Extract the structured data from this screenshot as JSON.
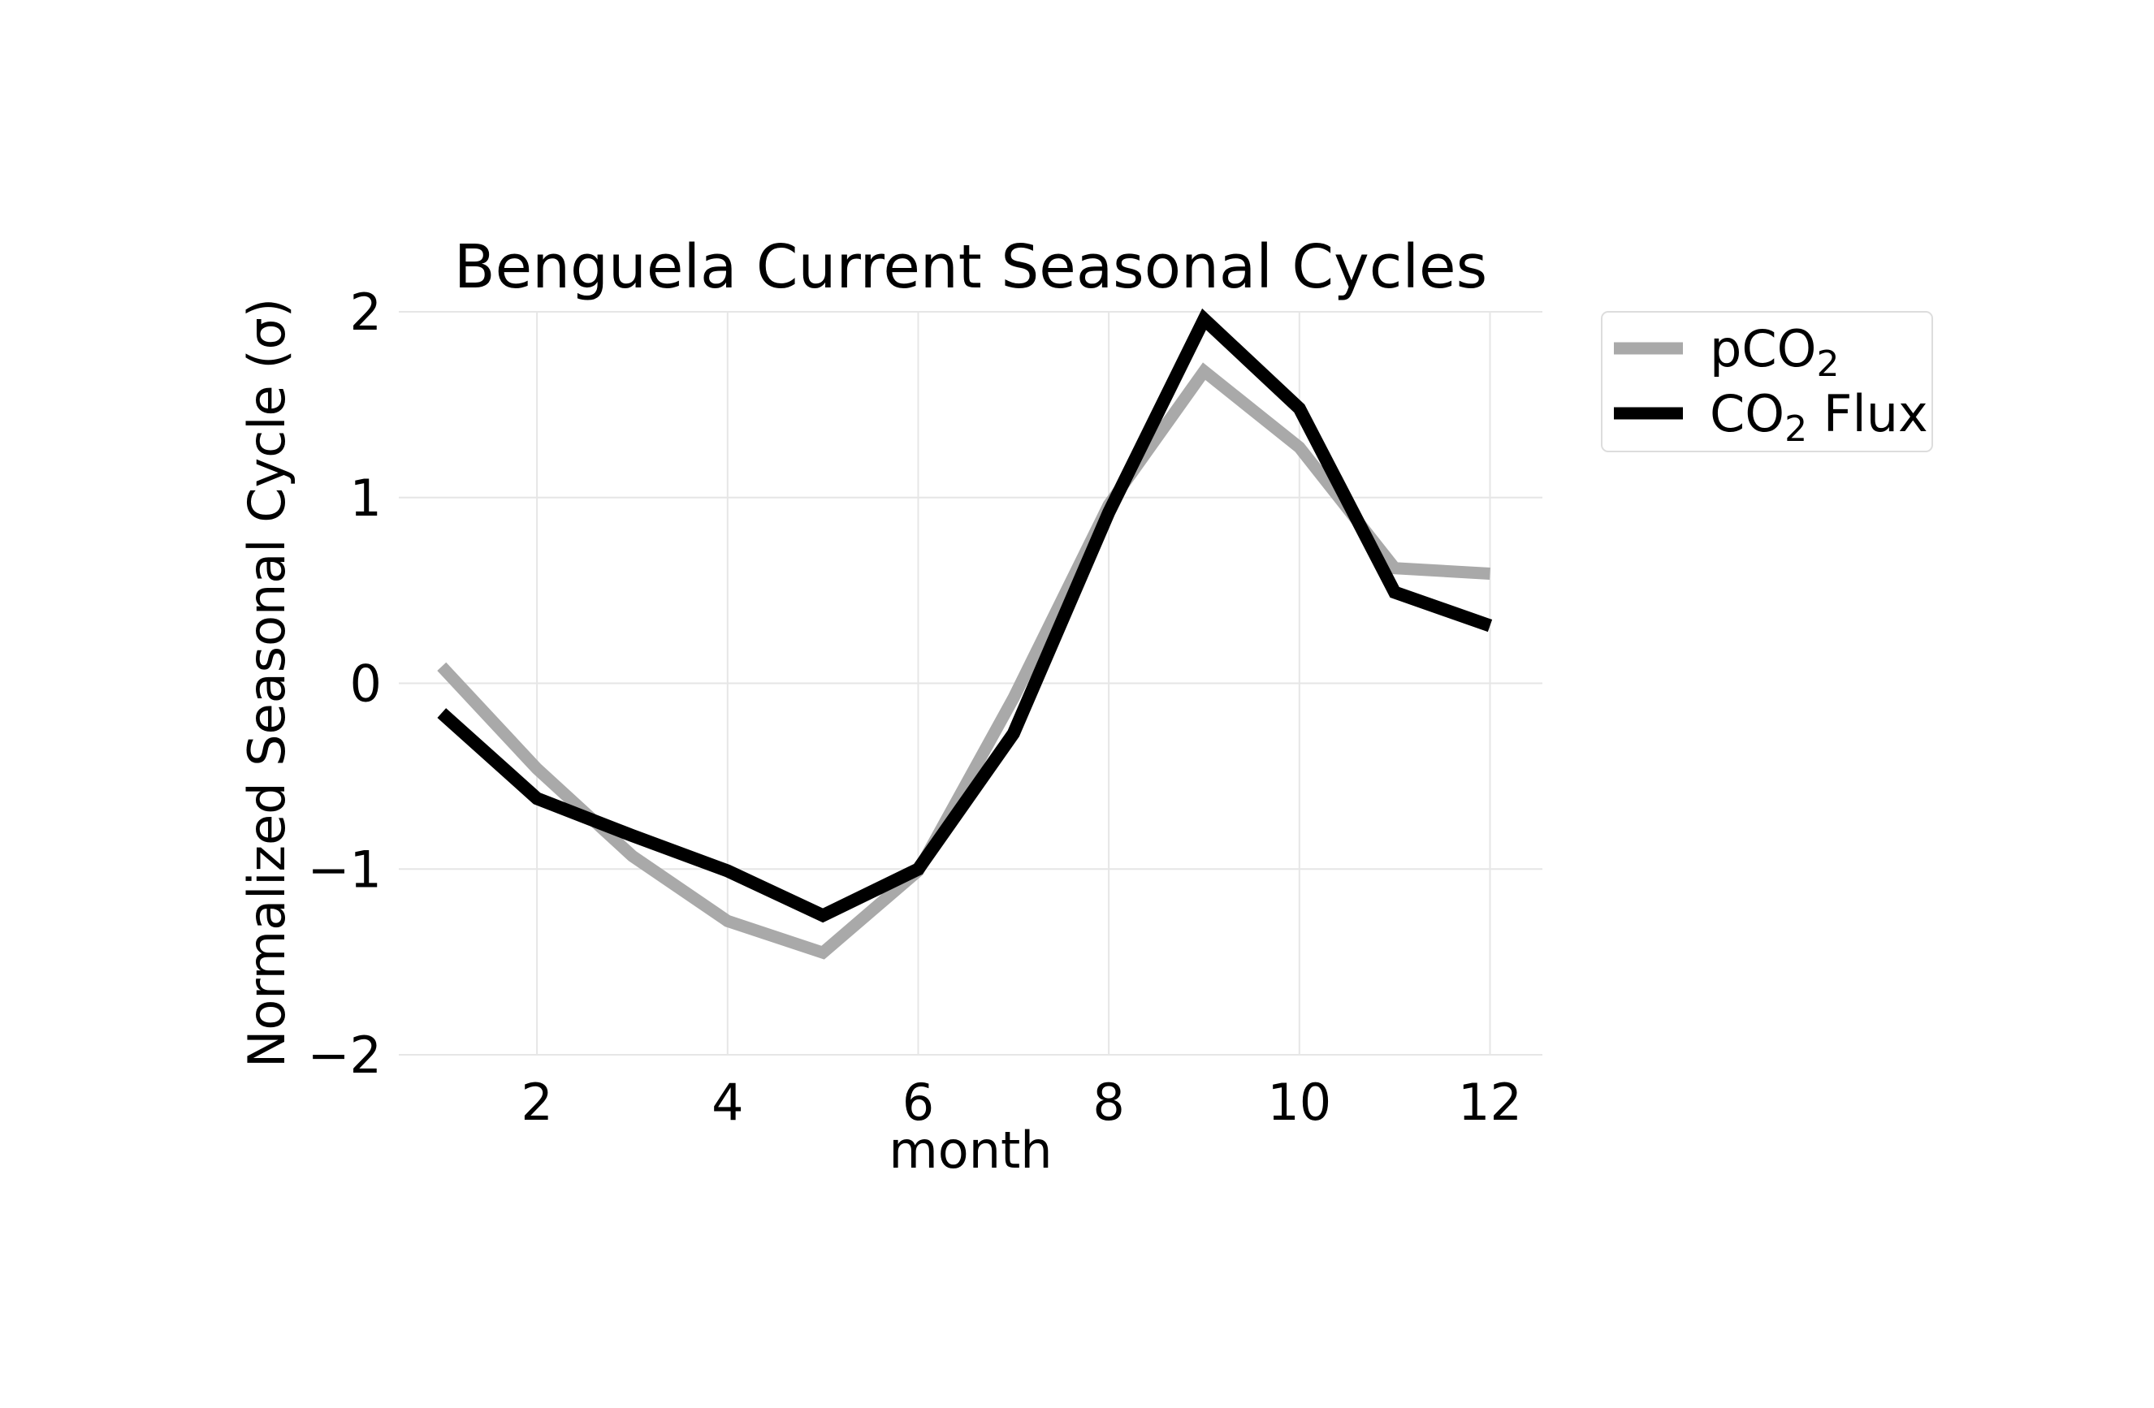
{
  "chart_data": {
    "type": "line",
    "title": "Benguela Current Seasonal Cycles",
    "xlabel": "month",
    "ylabel": "Normalized Seasonal Cycle (σ)",
    "xlim": [
      0.55,
      12.55
    ],
    "ylim": [
      -2,
      2
    ],
    "xticks": [
      2,
      4,
      6,
      8,
      10,
      12
    ],
    "yticks": [
      -2,
      -1,
      0,
      1,
      2
    ],
    "ytick_labels": [
      "−2",
      "−1",
      "0",
      "1",
      "2"
    ],
    "grid": true,
    "legend_position": "outside-top-right",
    "x": [
      1,
      2,
      3,
      4,
      5,
      6,
      7,
      8,
      9,
      10,
      11,
      12
    ],
    "series": [
      {
        "name": "pCO₂",
        "name_main": "pCO",
        "name_sub": "2",
        "name_after": "",
        "color": "#a9a9a9",
        "values": [
          0.09,
          -0.46,
          -0.93,
          -1.28,
          -1.45,
          -1.01,
          -0.08,
          0.96,
          1.68,
          1.27,
          0.62,
          0.59
        ]
      },
      {
        "name": "CO₂ Flux",
        "name_main": "CO",
        "name_sub": "2",
        "name_after": " Flux",
        "color": "#000000",
        "values": [
          -0.16,
          -0.62,
          -0.82,
          -1.01,
          -1.25,
          -1.0,
          -0.27,
          0.92,
          1.96,
          1.48,
          0.49,
          0.31
        ]
      }
    ]
  }
}
